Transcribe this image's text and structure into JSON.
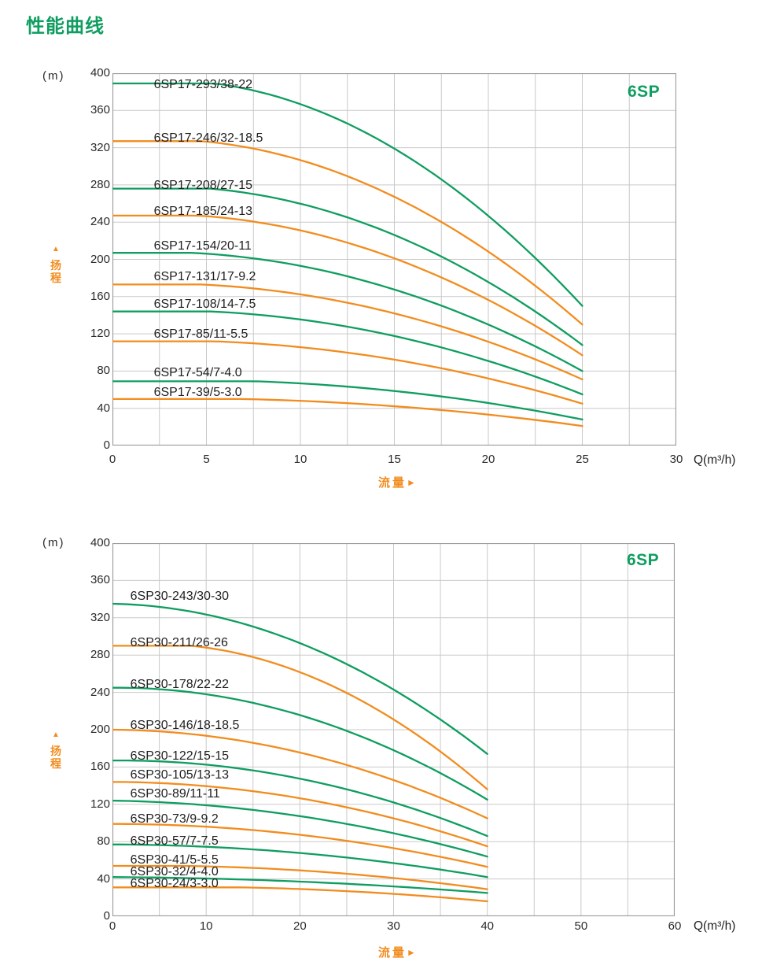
{
  "page": {
    "title": "性能曲线"
  },
  "colors": {
    "green": "#0f9d60",
    "orange": "#f28c1e",
    "grid": "#c9c9c9",
    "border": "#9a9a9a",
    "text": "#2b2b2b"
  },
  "chart_data": [
    {
      "type": "line",
      "family_badge": "6SP",
      "y_unit": "(m)",
      "x_unit": "Q(m³/h)",
      "x_label": "流量",
      "y_label": "扬程",
      "xlim": [
        0,
        30
      ],
      "ylim": [
        0,
        400
      ],
      "x_ticks": [
        0,
        5,
        10,
        15,
        20,
        25,
        30
      ],
      "x_minor_step": 2.5,
      "y_ticks": [
        0,
        40,
        80,
        120,
        160,
        200,
        240,
        280,
        320,
        360,
        400
      ],
      "grid": true,
      "legend": "labels drawn above each curve",
      "series": [
        {
          "name": "6SP17-293/38-22",
          "color": "green",
          "points": [
            [
              0,
              389
            ],
            [
              17,
              293
            ],
            [
              25,
              150
            ]
          ],
          "label_q": 2.2,
          "label_h": 387
        },
        {
          "name": "6SP17-246/32-18.5",
          "color": "orange",
          "points": [
            [
              0,
              327
            ],
            [
              17,
              246
            ],
            [
              25,
              130
            ]
          ],
          "label_q": 2.2,
          "label_h": 330
        },
        {
          "name": "6SP17-208/27-15",
          "color": "green",
          "points": [
            [
              0,
              276
            ],
            [
              17,
              208
            ],
            [
              25,
              108
            ]
          ],
          "label_q": 2.2,
          "label_h": 279
        },
        {
          "name": "6SP17-185/24-13",
          "color": "orange",
          "points": [
            [
              0,
              247
            ],
            [
              17,
              185
            ],
            [
              25,
              97
            ]
          ],
          "label_q": 2.2,
          "label_h": 251
        },
        {
          "name": "6SP17-154/20-11",
          "color": "green",
          "points": [
            [
              0,
              207
            ],
            [
              17,
              154
            ],
            [
              25,
              80
            ]
          ],
          "label_q": 2.2,
          "label_h": 214
        },
        {
          "name": "6SP17-131/17-9.2",
          "color": "orange",
          "points": [
            [
              0,
              173
            ],
            [
              17,
              131
            ],
            [
              25,
              71
            ]
          ],
          "label_q": 2.2,
          "label_h": 181
        },
        {
          "name": "6SP17-108/14-7.5",
          "color": "green",
          "points": [
            [
              0,
              144
            ],
            [
              17,
              108
            ],
            [
              25,
              55
            ]
          ],
          "label_q": 2.2,
          "label_h": 151
        },
        {
          "name": "6SP17-85/11-5.5",
          "color": "orange",
          "points": [
            [
              0,
              112
            ],
            [
              17,
              85
            ],
            [
              25,
              45
            ]
          ],
          "label_q": 2.2,
          "label_h": 119
        },
        {
          "name": "6SP17-54/7-4.0",
          "color": "green",
          "points": [
            [
              0,
              69
            ],
            [
              17,
              54
            ],
            [
              25,
              28
            ]
          ],
          "label_q": 2.2,
          "label_h": 78
        },
        {
          "name": "6SP17-39/5-3.0",
          "color": "orange",
          "points": [
            [
              0,
              50
            ],
            [
              17,
              39
            ],
            [
              25,
              21
            ]
          ],
          "label_q": 2.2,
          "label_h": 57
        }
      ]
    },
    {
      "type": "line",
      "family_badge": "6SP",
      "y_unit": "(m)",
      "x_unit": "Q(m³/h)",
      "x_label": "流量",
      "y_label": "扬程",
      "xlim": [
        0,
        60
      ],
      "ylim": [
        0,
        400
      ],
      "x_ticks": [
        0,
        10,
        20,
        30,
        40,
        50,
        60
      ],
      "x_minor_step": 5,
      "y_ticks": [
        0,
        40,
        80,
        120,
        160,
        200,
        240,
        280,
        320,
        360,
        400
      ],
      "grid": true,
      "legend": "labels drawn above each curve",
      "series": [
        {
          "name": "6SP30-243/30-30",
          "color": "green",
          "points": [
            [
              0,
              335
            ],
            [
              30,
              243
            ],
            [
              40,
              174
            ]
          ],
          "label_q": 1.9,
          "label_h": 343
        },
        {
          "name": "6SP30-211/26-26",
          "color": "orange",
          "points": [
            [
              0,
              290
            ],
            [
              30,
              211
            ],
            [
              40,
              136
            ]
          ],
          "label_q": 1.9,
          "label_h": 293
        },
        {
          "name": "6SP30-178/22-22",
          "color": "green",
          "points": [
            [
              0,
              245
            ],
            [
              30,
              178
            ],
            [
              40,
              125
            ]
          ],
          "label_q": 1.9,
          "label_h": 248
        },
        {
          "name": "6SP30-146/18-18.5",
          "color": "orange",
          "points": [
            [
              0,
              200
            ],
            [
              30,
              146
            ],
            [
              40,
              105
            ]
          ],
          "label_q": 1.9,
          "label_h": 204
        },
        {
          "name": "6SP30-122/15-15",
          "color": "green",
          "points": [
            [
              0,
              167
            ],
            [
              30,
              122
            ],
            [
              40,
              86
            ]
          ],
          "label_q": 1.9,
          "label_h": 171
        },
        {
          "name": "6SP30-105/13-13",
          "color": "orange",
          "points": [
            [
              0,
              144
            ],
            [
              30,
              105
            ],
            [
              40,
              75
            ]
          ],
          "label_q": 1.9,
          "label_h": 151
        },
        {
          "name": "6SP30-89/11-11",
          "color": "green",
          "points": [
            [
              0,
              124
            ],
            [
              30,
              89
            ],
            [
              40,
              64
            ]
          ],
          "label_q": 1.9,
          "label_h": 131
        },
        {
          "name": "6SP30-73/9-9.2",
          "color": "orange",
          "points": [
            [
              0,
              99
            ],
            [
              30,
              73
            ],
            [
              40,
              53
            ]
          ],
          "label_q": 1.9,
          "label_h": 104
        },
        {
          "name": "6SP30-57/7-7.5",
          "color": "green",
          "points": [
            [
              0,
              77
            ],
            [
              30,
              57
            ],
            [
              40,
              42
            ]
          ],
          "label_q": 1.9,
          "label_h": 80
        },
        {
          "name": "6SP30-41/5-5.5",
          "color": "orange",
          "points": [
            [
              0,
              54
            ],
            [
              30,
              41
            ],
            [
              40,
              29
            ]
          ],
          "label_q": 1.9,
          "label_h": 60
        },
        {
          "name": "6SP30-32/4-4.0",
          "color": "green",
          "points": [
            [
              0,
              42
            ],
            [
              30,
              32
            ],
            [
              40,
              25
            ]
          ],
          "label_q": 1.9,
          "label_h": 47
        },
        {
          "name": "6SP30-24/3-3.0",
          "color": "orange",
          "points": [
            [
              0,
              31
            ],
            [
              30,
              24
            ],
            [
              40,
              16
            ]
          ],
          "label_q": 1.9,
          "label_h": 34.5
        }
      ]
    }
  ]
}
